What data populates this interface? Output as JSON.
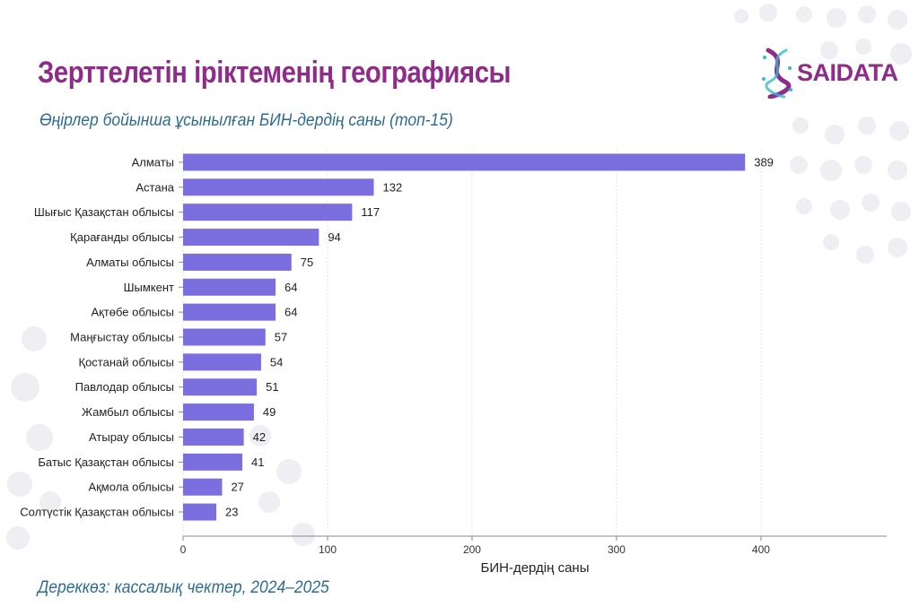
{
  "page": {
    "title": "Зерттелетін іріктеменің географиясы",
    "subtitle": "Өңірлер бойынша ұсынылған БИН-дердің саны (топ-15)",
    "source": "Дереккөз: кассалық чектер, 2024–2025"
  },
  "logo": {
    "text": "SAIDATA",
    "icon": "dna-helix-icon",
    "brand_color": "#8e2c8a"
  },
  "colors": {
    "bar": "#7b6fe0",
    "title": "#8e2c8a",
    "subtitle": "#2f6b91",
    "axis": "#888888"
  },
  "chart_data": {
    "type": "bar",
    "orientation": "horizontal",
    "categories": [
      "Алматы",
      "Астана",
      "Шығыс Қазақстан облысы",
      "Қарағанды облысы",
      "Алматы облысы",
      "Шымкент",
      "Ақтөбе облысы",
      "Маңғыстау облысы",
      "Қостанай облысы",
      "Павлодар облысы",
      "Жамбыл облысы",
      "Атырау облысы",
      "Батыс Қазақстан облысы",
      "Ақмола облысы",
      "Солтүстік Қазақстан облысы"
    ],
    "values": [
      389,
      132,
      117,
      94,
      75,
      64,
      64,
      57,
      54,
      51,
      49,
      42,
      41,
      27,
      23
    ],
    "value_labels": [
      "389",
      "132",
      "117",
      "94",
      "75",
      "64",
      "64",
      "57",
      "54",
      "51",
      "49",
      "42",
      "41",
      "27",
      "23"
    ],
    "xlabel": "БИН-дердің саны",
    "ylabel": "",
    "xlim": [
      0,
      487
    ],
    "xticks": [
      0,
      100,
      200,
      300,
      400
    ],
    "grid": true
  }
}
